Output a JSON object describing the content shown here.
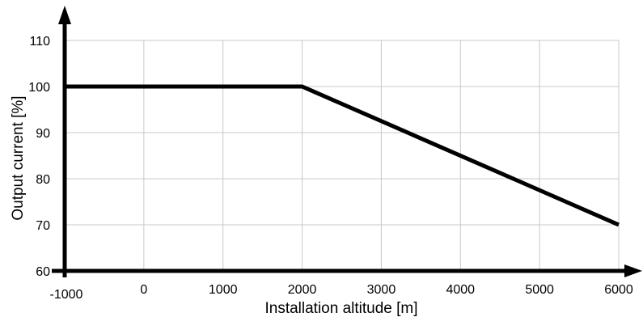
{
  "chart_data": {
    "type": "line",
    "xlabel": "Installation altitude [m]",
    "ylabel": "Output current [%]",
    "xlim": [
      -1000,
      6000
    ],
    "ylim": [
      60,
      110
    ],
    "x_ticks": [
      -1000,
      0,
      1000,
      2000,
      3000,
      4000,
      5000,
      6000
    ],
    "y_ticks": [
      60,
      70,
      80,
      90,
      100,
      110
    ],
    "grid": true,
    "series": [
      {
        "x": [
          -1000,
          2000,
          6000
        ],
        "y": [
          100,
          100,
          70
        ]
      }
    ],
    "colors": {
      "line": "#000000",
      "grid": "#c8c8c8",
      "axis": "#000000"
    }
  }
}
